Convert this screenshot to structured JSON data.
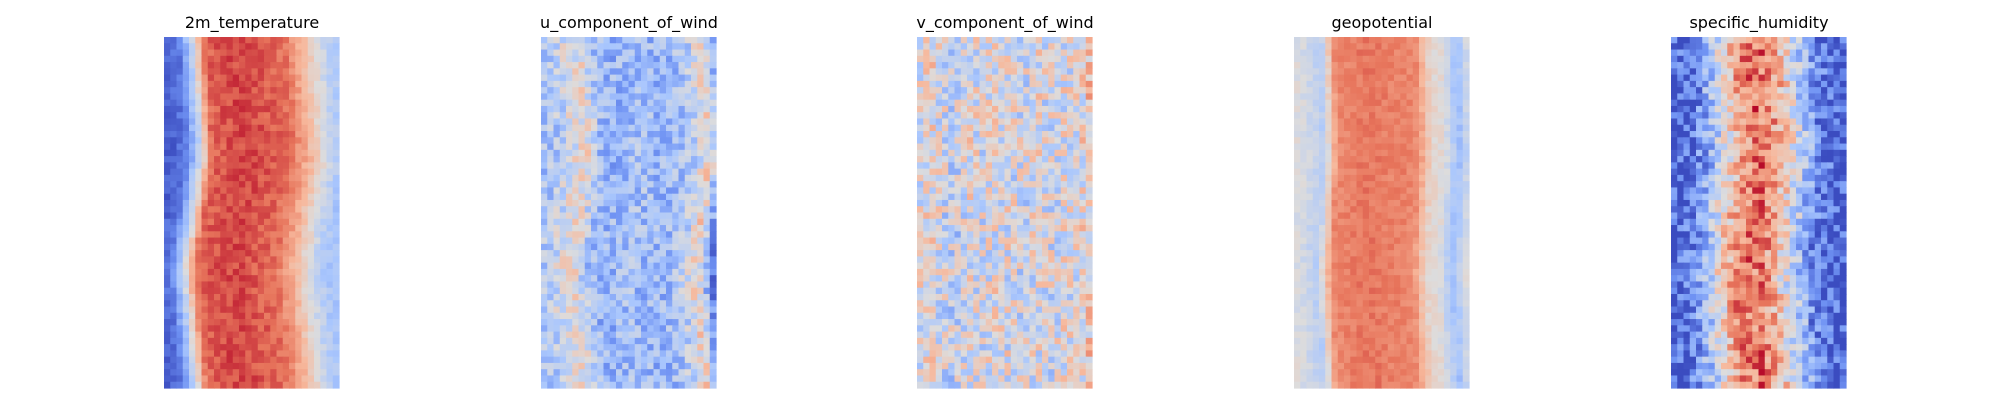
{
  "colormap": {
    "name": "coolwarm",
    "stops": [
      "#3b4cc0",
      "#6f92f3",
      "#aac7fd",
      "#dddcdc",
      "#f7b89c",
      "#e7745b",
      "#b40426"
    ]
  },
  "chart_data": [
    {
      "type": "heatmap",
      "title": "2m_temperature",
      "axes": "off",
      "colorbar": false,
      "columns": [
        0.05,
        0.1,
        0.4,
        0.85,
        0.88,
        0.9,
        0.9,
        0.88,
        0.86,
        0.82,
        0.7,
        0.55,
        0.4,
        0.32
      ],
      "row_shift": [
        0.0,
        0.05,
        -0.05,
        0.02
      ],
      "noise": 0.05
    },
    {
      "type": "heatmap",
      "title": "u_component_of_wind",
      "axes": "off",
      "colorbar": false,
      "columns": [
        0.32,
        0.38,
        0.48,
        0.52,
        0.3,
        0.28,
        0.3,
        0.32,
        0.3,
        0.28,
        0.32,
        0.4,
        0.58,
        0.15
      ],
      "row_shift": [
        0.0,
        0.04,
        -0.04,
        0.03
      ],
      "noise": 0.14
    },
    {
      "type": "heatmap",
      "title": "v_component_of_wind",
      "axes": "off",
      "colorbar": false,
      "columns": [
        0.48,
        0.52,
        0.45,
        0.42,
        0.5,
        0.46,
        0.5,
        0.48,
        0.45,
        0.5,
        0.46,
        0.5,
        0.48,
        0.62
      ],
      "row_shift": [
        0.0,
        0.0,
        0.0,
        0.0
      ],
      "noise": 0.2
    },
    {
      "type": "heatmap",
      "title": "geopotential",
      "axes": "off",
      "colorbar": false,
      "columns": [
        0.5,
        0.45,
        0.38,
        0.78,
        0.8,
        0.82,
        0.82,
        0.8,
        0.8,
        0.78,
        0.55,
        0.5,
        0.3,
        0.5
      ],
      "row_shift": [
        0.0,
        0.02,
        -0.02,
        0.02
      ],
      "noise": 0.04
    },
    {
      "type": "heatmap",
      "title": "specific_humidity",
      "axes": "off",
      "colorbar": false,
      "columns": [
        0.05,
        0.08,
        0.18,
        0.35,
        0.55,
        0.75,
        0.82,
        0.8,
        0.65,
        0.45,
        0.28,
        0.12,
        0.06,
        0.04
      ],
      "row_shift": [
        0.0,
        0.03,
        -0.03,
        0.02
      ],
      "noise": 0.18
    }
  ]
}
